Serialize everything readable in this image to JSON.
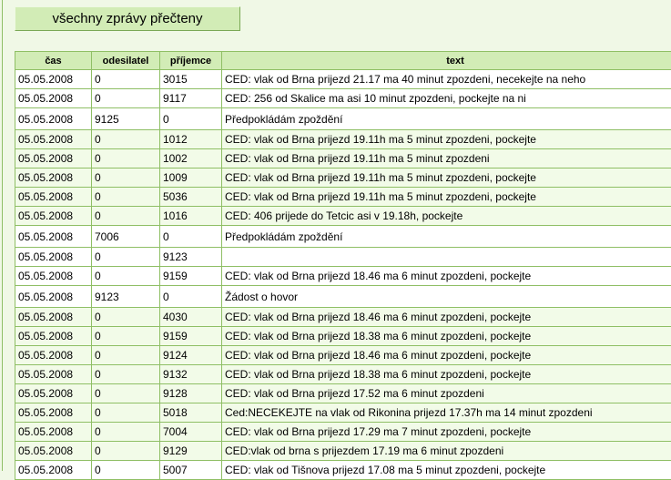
{
  "toolbar": {
    "mark_all_read_label": "všechny zprávy přečteny"
  },
  "table": {
    "headers": [
      "čas",
      "odesilatel",
      "příjemce",
      "text"
    ],
    "rows": [
      {
        "time": "05.05.2008",
        "sender": "0",
        "recipient": "3015",
        "text": "CED: vlak od Brna prijezd 21.17 ma 40 minut zpozdeni, necekejte na neho"
      },
      {
        "time": "05.05.2008",
        "sender": "0",
        "recipient": "9117",
        "text": "CED: 256 od Skalice ma asi 10 minut zpozdeni, pockejte na ni"
      },
      {
        "time": "05.05.2008",
        "sender": "9125",
        "recipient": "0",
        "text": "Předpokládám zpoždění"
      },
      {
        "time": "05.05.2008",
        "sender": "0",
        "recipient": "1012",
        "text": "CED: vlak od Brna prijezd 19.11h ma 5 minut zpozdeni, pockejte"
      },
      {
        "time": "05.05.2008",
        "sender": "0",
        "recipient": "1002",
        "text": "CED: vlak od Brna prijezd 19.11h ma 5 minut zpozdeni"
      },
      {
        "time": "05.05.2008",
        "sender": "0",
        "recipient": "1009",
        "text": "CED: vlak od Brna prijezd 19.11h ma 5 minut zpozdeni, pockejte"
      },
      {
        "time": "05.05.2008",
        "sender": "0",
        "recipient": "5036",
        "text": "CED: vlak od Brna prijezd 19.11h ma 5 minut zpozdeni, pockejte"
      },
      {
        "time": "05.05.2008",
        "sender": "0",
        "recipient": "1016",
        "text": "CED: 406 prijede do Tetcic asi v 19.18h, pockejte"
      },
      {
        "time": "05.05.2008",
        "sender": "7006",
        "recipient": "0",
        "text": "Předpokládám zpoždění"
      },
      {
        "time": "05.05.2008",
        "sender": "0",
        "recipient": "9123",
        "text": ""
      },
      {
        "time": "05.05.2008",
        "sender": "0",
        "recipient": "9159",
        "text": "CED: vlak od Brna prijezd 18.46 ma 6 minut zpozdeni, pockejte"
      },
      {
        "time": "05.05.2008",
        "sender": "9123",
        "recipient": "0",
        "text": "Žádost o hovor"
      },
      {
        "time": "05.05.2008",
        "sender": "0",
        "recipient": "4030",
        "text": "CED: vlak od Brna prijezd 18.46 ma 6 minut zpozdeni, pockejte"
      },
      {
        "time": "05.05.2008",
        "sender": "0",
        "recipient": "9159",
        "text": "CED: vlak od Brna prijezd 18.38 ma 6 minut zpozdeni, pockejte"
      },
      {
        "time": "05.05.2008",
        "sender": "0",
        "recipient": "9124",
        "text": "CED: vlak od Brna prijezd 18.46 ma 6 minut zpozdeni, pockejte"
      },
      {
        "time": "05.05.2008",
        "sender": "0",
        "recipient": "9132",
        "text": "CED: vlak od Brna prijezd 18.38 ma 6 minut zpozdeni, pockejte"
      },
      {
        "time": "05.05.2008",
        "sender": "0",
        "recipient": "9128",
        "text": "CED: vlak od Brna prijezd 17.52 ma 6 minut zpozdeni"
      },
      {
        "time": "05.05.2008",
        "sender": "0",
        "recipient": "5018",
        "text": "Ced:NECEKEJTE na vlak od Rikonina prijezd 17.37h ma 14 minut zpozdeni"
      },
      {
        "time": "05.05.2008",
        "sender": "0",
        "recipient": "7004",
        "text": "CED: vlak od Brna prijezd 17.29 ma 7 minut zpozdeni, pockejte"
      },
      {
        "time": "05.05.2008",
        "sender": "0",
        "recipient": "9129",
        "text": "CED:vlak od brna s prijezdem 17.19 ma 6 minut zpozdeni"
      },
      {
        "time": "05.05.2008",
        "sender": "0",
        "recipient": "5007",
        "text": "CED: vlak od Tišnova prijezd 17.08 ma 5 minut zpozdeni, pockejte"
      }
    ]
  }
}
